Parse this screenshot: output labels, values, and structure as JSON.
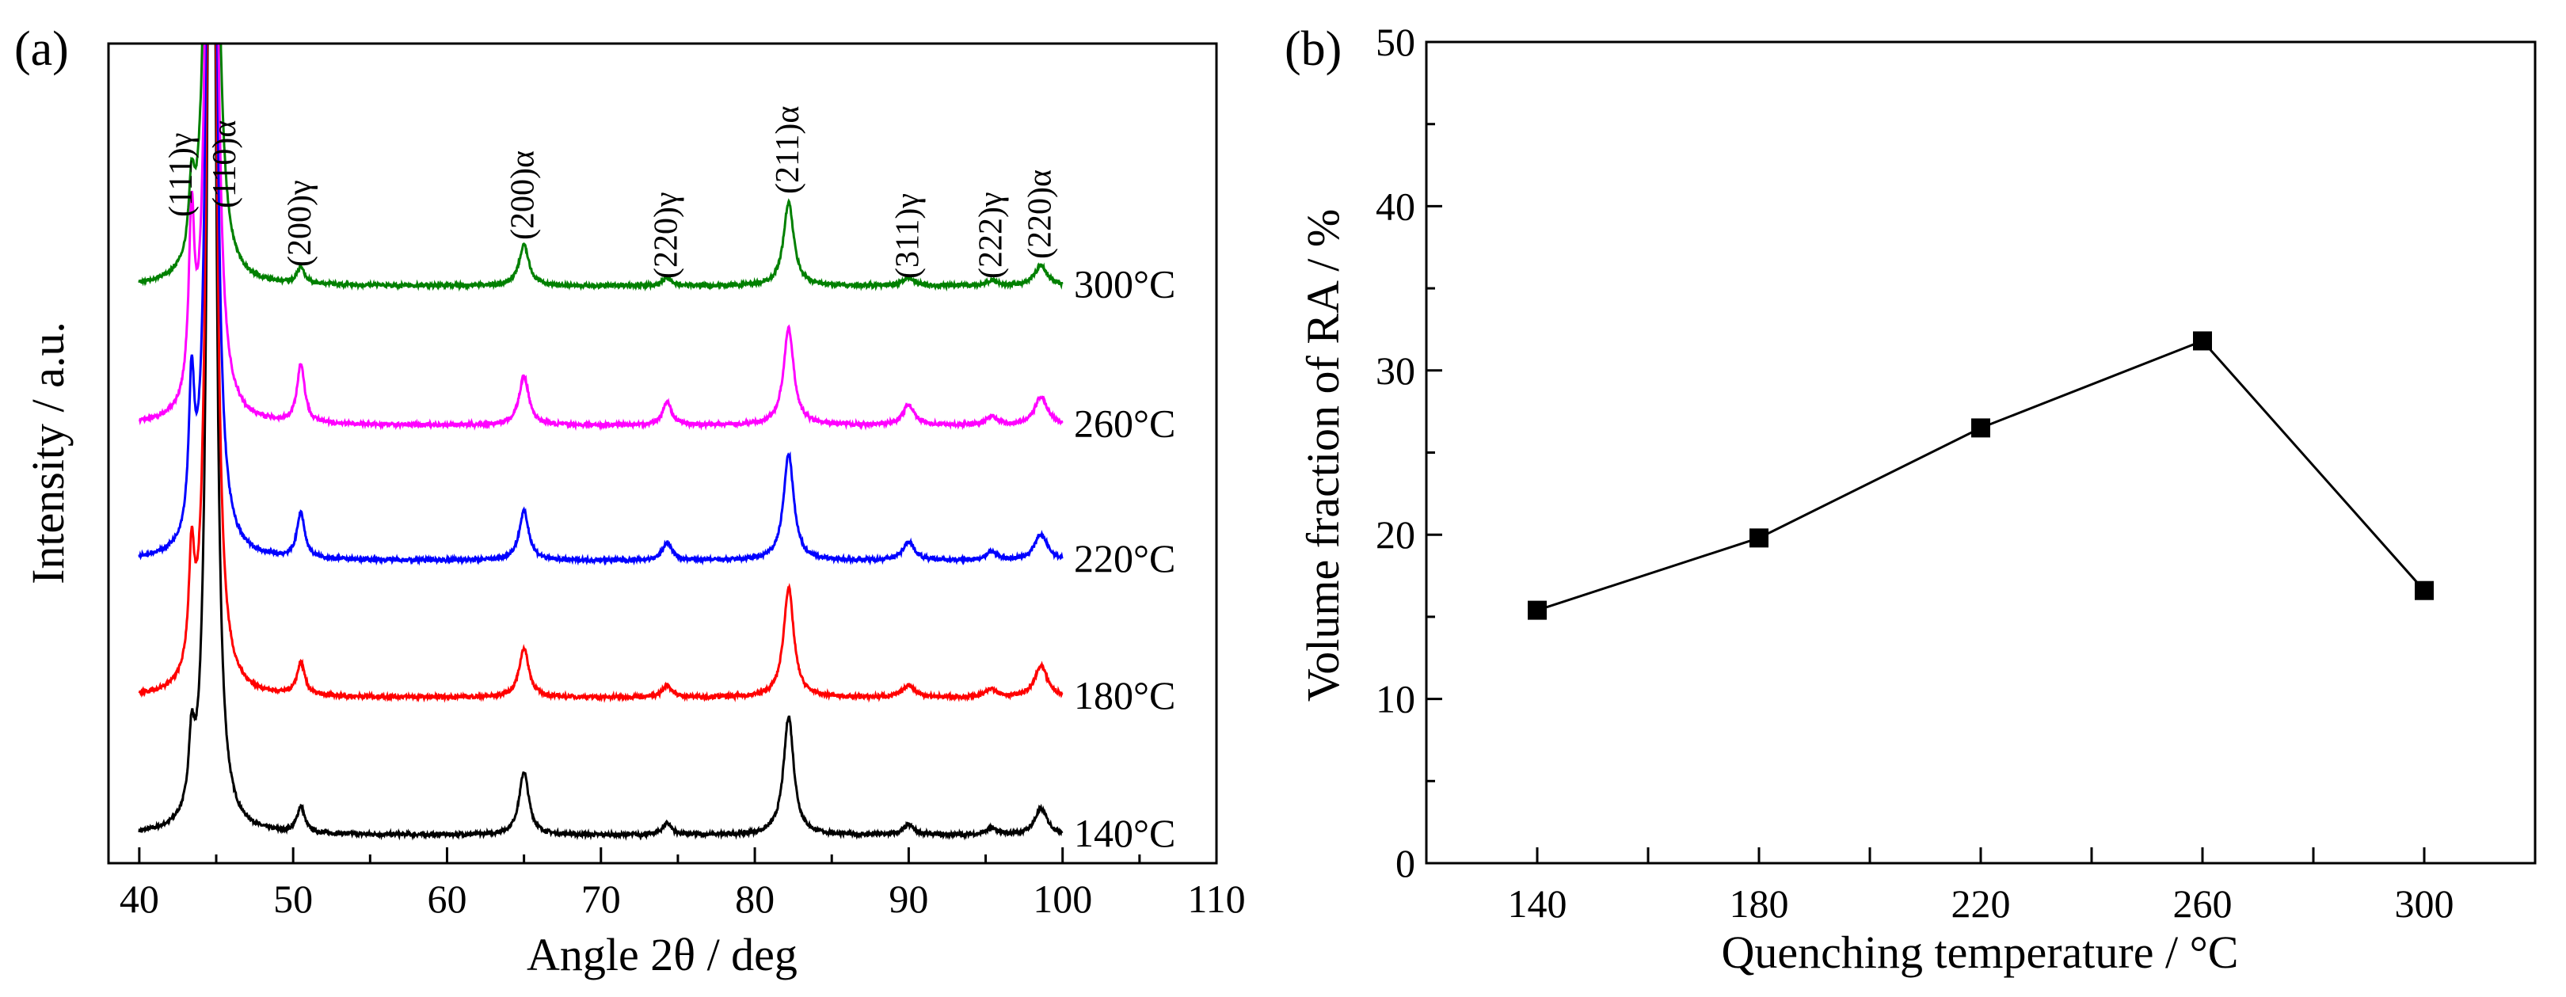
{
  "chart_data": [
    {
      "type": "line",
      "panel_label": "(a)",
      "xlabel": "Angle 2θ / deg",
      "ylabel": "Intensity / a.u.",
      "xlim": [
        38,
        110
      ],
      "ylim": [
        0,
        100
      ],
      "x_ticks": [
        40,
        50,
        60,
        70,
        80,
        90,
        100,
        110
      ],
      "x_range_measured": [
        40,
        100
      ],
      "peak_positions": [
        43.4,
        44.7,
        50.5,
        65.0,
        74.3,
        82.2,
        90.0,
        95.4,
        98.6
      ],
      "peak_widths": [
        0.22,
        0.25,
        0.3,
        0.38,
        0.35,
        0.4,
        0.45,
        0.45,
        0.5
      ],
      "series": [
        {
          "name": "140°C",
          "color": "#000000",
          "baseline": 3.4,
          "peak_heights": [
            8,
            200,
            3.2,
            7.7,
            1.5,
            14.5,
            1.2,
            0.8,
            3.2
          ]
        },
        {
          "name": "180°C",
          "color": "#ff0000",
          "baseline": 20.2,
          "peak_heights": [
            13.5,
            200,
            4,
            6,
            1.5,
            13.4,
            1.5,
            1,
            3.8
          ]
        },
        {
          "name": "220°C",
          "color": "#0000ff",
          "baseline": 36.9,
          "peak_heights": [
            18,
            200,
            5.6,
            6,
            2.2,
            13,
            2.3,
            1,
            3.2
          ]
        },
        {
          "name": "260°C",
          "color": "#ff00ff",
          "baseline": 53.4,
          "peak_heights": [
            21.5,
            200,
            7.2,
            6,
            2.8,
            11.8,
            2.5,
            1,
            3.5
          ]
        },
        {
          "name": "300°C",
          "color": "#008000",
          "baseline": 70.4,
          "peak_heights": [
            8.4,
            200,
            2,
            5,
            1,
            10.2,
            1,
            0.6,
            2.5
          ]
        }
      ],
      "annotations": [
        {
          "text": "(111)γ",
          "x": 43.4
        },
        {
          "text": "(110)α",
          "x": 44.7
        },
        {
          "text": "(200)γ",
          "x": 50.5
        },
        {
          "text": "(200)α",
          "x": 65.0
        },
        {
          "text": "(220)γ",
          "x": 74.3
        },
        {
          "text": "(211)α",
          "x": 82.2
        },
        {
          "text": "(311)γ",
          "x": 90.0
        },
        {
          "text": "(222)γ",
          "x": 95.4
        },
        {
          "text": "(220)α",
          "x": 98.6
        }
      ]
    },
    {
      "type": "line",
      "panel_label": "(b)",
      "xlabel": "Quenching temperature / °C",
      "ylabel": "Volume fraction of RA / %",
      "xlim": [
        120,
        320
      ],
      "ylim": [
        0,
        50
      ],
      "x_ticks": [
        140,
        180,
        220,
        260,
        300
      ],
      "y_ticks": [
        0,
        10,
        20,
        30,
        40,
        50
      ],
      "marker": "square",
      "color": "#000000",
      "x": [
        140,
        180,
        220,
        260,
        300
      ],
      "y": [
        15.4,
        19.8,
        26.5,
        31.8,
        16.6
      ]
    }
  ]
}
